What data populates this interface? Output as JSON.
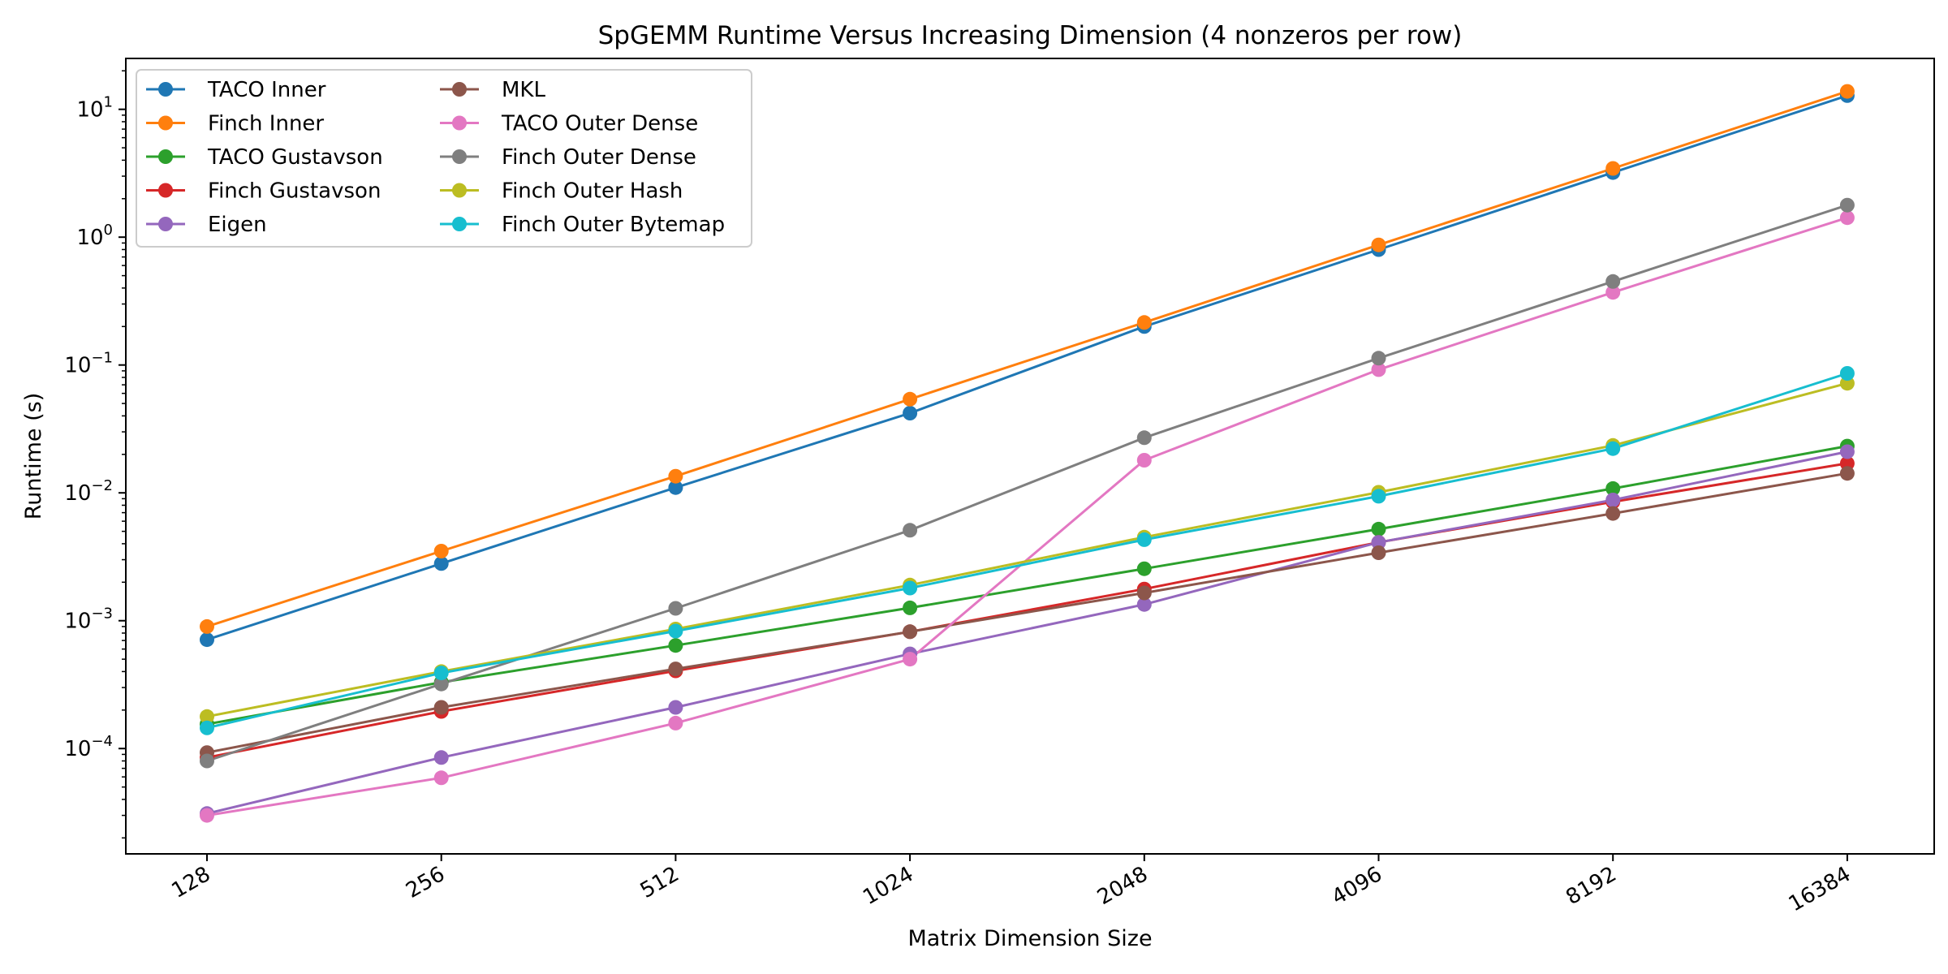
{
  "chart_data": {
    "type": "line",
    "title": "SpGEMM Runtime Versus Increasing Dimension (4 nonzeros per row)",
    "xlabel": "Matrix Dimension Size",
    "ylabel": "Runtime (s)",
    "x_scale": "log2",
    "y_scale": "log10",
    "categories": [
      "128",
      "256",
      "512",
      "1024",
      "2048",
      "4096",
      "8192",
      "16384"
    ],
    "y_ticks": [
      {
        "base": "10",
        "exp": "−4",
        "value": 0.0001
      },
      {
        "base": "10",
        "exp": "−3",
        "value": 0.001
      },
      {
        "base": "10",
        "exp": "−2",
        "value": 0.01
      },
      {
        "base": "10",
        "exp": "−1",
        "value": 0.1
      },
      {
        "base": "10",
        "exp": "0",
        "value": 1
      },
      {
        "base": "10",
        "exp": "1",
        "value": 10
      }
    ],
    "ylim": [
      1.5e-05,
      25
    ],
    "grid": false,
    "legend_position": "upper-left",
    "legend_columns": 2,
    "series": [
      {
        "name": "TACO Inner",
        "color": "#1f77b4",
        "values": [
          0.00071,
          0.0028,
          0.011,
          0.042,
          0.2,
          0.8,
          3.2,
          12.8
        ]
      },
      {
        "name": "Finch Inner",
        "color": "#ff7f0e",
        "values": [
          0.0009,
          0.0035,
          0.0135,
          0.054,
          0.215,
          0.87,
          3.45,
          13.8
        ]
      },
      {
        "name": "TACO Gustavson",
        "color": "#2ca02c",
        "values": [
          0.000155,
          0.00033,
          0.00064,
          0.00126,
          0.00255,
          0.0052,
          0.0108,
          0.0232
        ]
      },
      {
        "name": "Finch Gustavson",
        "color": "#d62728",
        "values": [
          8.5e-05,
          0.000195,
          0.000405,
          0.00082,
          0.00177,
          0.0041,
          0.0085,
          0.017
        ]
      },
      {
        "name": "Eigen",
        "color": "#9467bd",
        "values": [
          3.1e-05,
          8.5e-05,
          0.00021,
          0.00055,
          0.00134,
          0.0041,
          0.0088,
          0.021
        ]
      },
      {
        "name": "MKL",
        "color": "#8c564b",
        "values": [
          9.3e-05,
          0.00021,
          0.00042,
          0.00082,
          0.00165,
          0.0034,
          0.0069,
          0.0142
        ]
      },
      {
        "name": "TACO Outer Dense",
        "color": "#e377c2",
        "values": [
          3e-05,
          5.9e-05,
          0.000158,
          0.0005,
          0.018,
          0.092,
          0.37,
          1.42
        ]
      },
      {
        "name": "Finch Outer Dense",
        "color": "#7f7f7f",
        "values": [
          8e-05,
          0.00032,
          0.00125,
          0.0051,
          0.027,
          0.113,
          0.45,
          1.78
        ]
      },
      {
        "name": "Finch Outer Hash",
        "color": "#bcbd22",
        "values": [
          0.000178,
          0.0004,
          0.00086,
          0.0019,
          0.0045,
          0.0101,
          0.0235,
          0.072
        ]
      },
      {
        "name": "Finch Outer Bytemap",
        "color": "#17becf",
        "values": [
          0.000145,
          0.00039,
          0.00083,
          0.0018,
          0.0043,
          0.0094,
          0.0222,
          0.086
        ]
      }
    ]
  }
}
